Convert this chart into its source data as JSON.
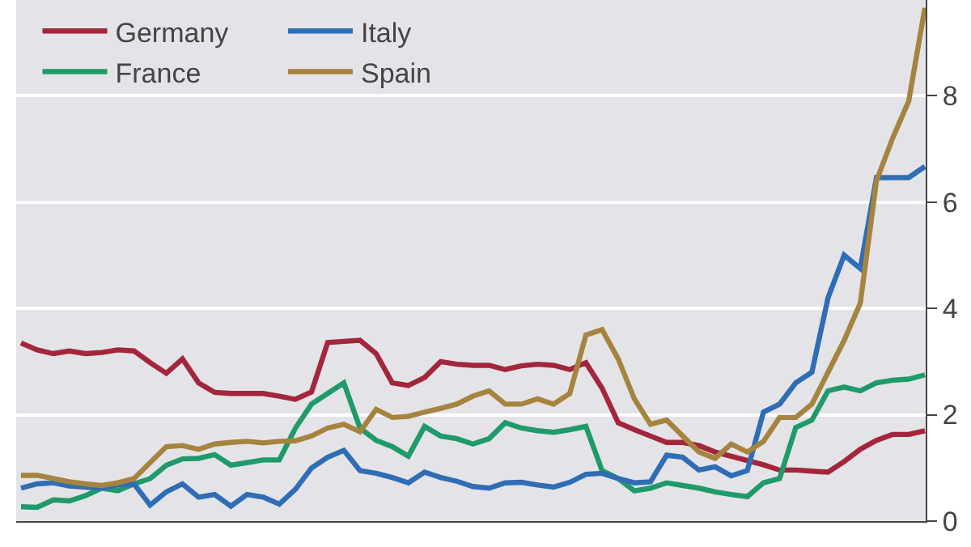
{
  "chart_data": {
    "type": "line",
    "categories": [
      null,
      null,
      null,
      null,
      null,
      null,
      null,
      null,
      null,
      null,
      null,
      null,
      null,
      null,
      null,
      null,
      null,
      null,
      null,
      null,
      null,
      null,
      null,
      null,
      null,
      null,
      null,
      null,
      null,
      null,
      null,
      null,
      null,
      null,
      null,
      null,
      null,
      null,
      null,
      null,
      null,
      null,
      null,
      null,
      null,
      null,
      null,
      null,
      null,
      null,
      null,
      null,
      null,
      null,
      null,
      null,
      null
    ],
    "series": [
      {
        "name": "Germany",
        "color": "#a3263c",
        "values": [
          3.35,
          3.22,
          3.15,
          3.2,
          3.15,
          3.17,
          3.22,
          3.2,
          2.98,
          2.78,
          3.05,
          2.6,
          2.42,
          2.4,
          2.4,
          2.4,
          2.35,
          2.29,
          2.43,
          3.36,
          3.38,
          3.4,
          3.15,
          2.6,
          2.55,
          2.7,
          3.0,
          2.95,
          2.93,
          2.93,
          2.85,
          2.92,
          2.95,
          2.93,
          2.85,
          2.98,
          2.5,
          1.85,
          1.72,
          1.6,
          1.48,
          1.48,
          1.42,
          1.3,
          1.22,
          1.14,
          1.06,
          0.96,
          0.96,
          0.94,
          0.92,
          1.12,
          1.35,
          1.52,
          1.63,
          1.63,
          1.7
        ]
      },
      {
        "name": "France",
        "color": "#1f9a6a",
        "values": [
          0.27,
          0.26,
          0.4,
          0.38,
          0.48,
          0.62,
          0.57,
          0.7,
          0.8,
          1.05,
          1.17,
          1.18,
          1.25,
          1.05,
          1.1,
          1.15,
          1.15,
          1.75,
          2.2,
          2.4,
          2.6,
          1.75,
          1.52,
          1.4,
          1.22,
          1.78,
          1.6,
          1.55,
          1.45,
          1.55,
          1.85,
          1.75,
          1.7,
          1.67,
          1.72,
          1.78,
          0.95,
          0.8,
          0.57,
          0.62,
          0.72,
          0.67,
          0.62,
          0.55,
          0.5,
          0.46,
          0.72,
          0.8,
          1.76,
          1.9,
          2.45,
          2.52,
          2.45,
          2.6,
          2.65,
          2.67,
          2.75
        ]
      },
      {
        "name": "Italy",
        "color": "#2f6db5",
        "values": [
          0.62,
          0.7,
          0.72,
          0.66,
          0.64,
          0.62,
          0.68,
          0.7,
          0.3,
          0.55,
          0.7,
          0.45,
          0.5,
          0.28,
          0.5,
          0.45,
          0.32,
          0.6,
          1.0,
          1.2,
          1.33,
          0.95,
          0.9,
          0.82,
          0.72,
          0.92,
          0.82,
          0.75,
          0.65,
          0.62,
          0.72,
          0.73,
          0.68,
          0.64,
          0.73,
          0.88,
          0.9,
          0.8,
          0.72,
          0.74,
          1.24,
          1.2,
          0.96,
          1.02,
          0.85,
          0.95,
          2.05,
          2.2,
          2.6,
          2.8,
          4.2,
          5.0,
          4.75,
          6.46,
          6.46,
          6.46,
          6.67
        ]
      },
      {
        "name": "Spain",
        "color": "#a6843f",
        "values": [
          0.86,
          0.86,
          0.8,
          0.74,
          0.7,
          0.67,
          0.72,
          0.8,
          1.1,
          1.4,
          1.42,
          1.35,
          1.45,
          1.48,
          1.5,
          1.47,
          1.5,
          1.51,
          1.6,
          1.75,
          1.82,
          1.68,
          2.1,
          1.95,
          1.97,
          2.05,
          2.12,
          2.2,
          2.35,
          2.45,
          2.2,
          2.2,
          2.3,
          2.2,
          2.4,
          3.5,
          3.6,
          3.05,
          2.3,
          1.82,
          1.9,
          1.6,
          1.3,
          1.18,
          1.45,
          1.3,
          1.5,
          1.95,
          1.95,
          2.2,
          2.8,
          3.4,
          4.1,
          6.4,
          7.2,
          7.9,
          9.65
        ]
      }
    ],
    "ylim": [
      0,
      9.8
    ],
    "yticks": [
      0,
      2,
      4,
      6,
      8
    ],
    "grid": "y",
    "legend": "top left",
    "tick_labels": "y",
    "marker": "none",
    "line_style": "solid"
  }
}
